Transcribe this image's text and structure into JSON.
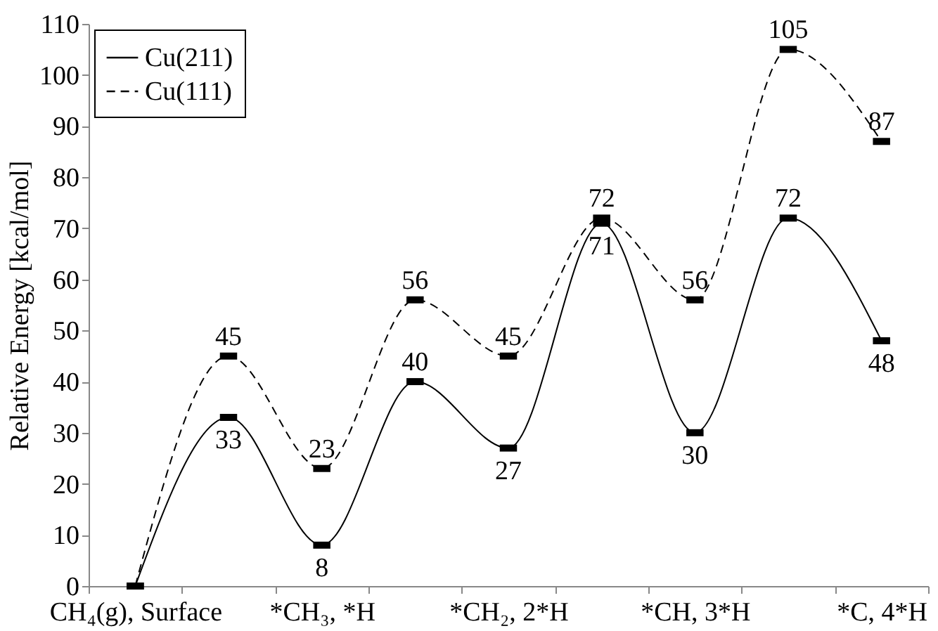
{
  "chart_data": {
    "type": "line",
    "ylabel": "Relative Energy [kcal/mol]",
    "categories": [
      "CH₄(g), Surface",
      null,
      "*CH₃, *H",
      null,
      "*CH₂, 2*H",
      null,
      "*CH, 3*H",
      null,
      "*C, 4*H"
    ],
    "series": [
      {
        "name": "Cu(211)",
        "color": "#000000",
        "line_style": "solid",
        "values": [
          0,
          33,
          8,
          40,
          27,
          71,
          30,
          72,
          48
        ],
        "value_labels": [
          null,
          "33",
          "8",
          "40",
          "27",
          "71",
          "30",
          "72",
          "48"
        ]
      },
      {
        "name": "Cu(111)",
        "color": "#000000",
        "line_style": "dashed",
        "values": [
          0,
          45,
          23,
          56,
          45,
          72,
          56,
          105,
          87
        ],
        "value_labels": [
          null,
          "45",
          "23",
          "56",
          "45",
          "72",
          "56",
          "105",
          "87"
        ]
      }
    ],
    "ylim": [
      0,
      110
    ],
    "yticks": [
      0,
      10,
      20,
      30,
      40,
      50,
      60,
      70,
      80,
      90,
      100,
      110
    ],
    "grid": false,
    "legend": "top left"
  }
}
